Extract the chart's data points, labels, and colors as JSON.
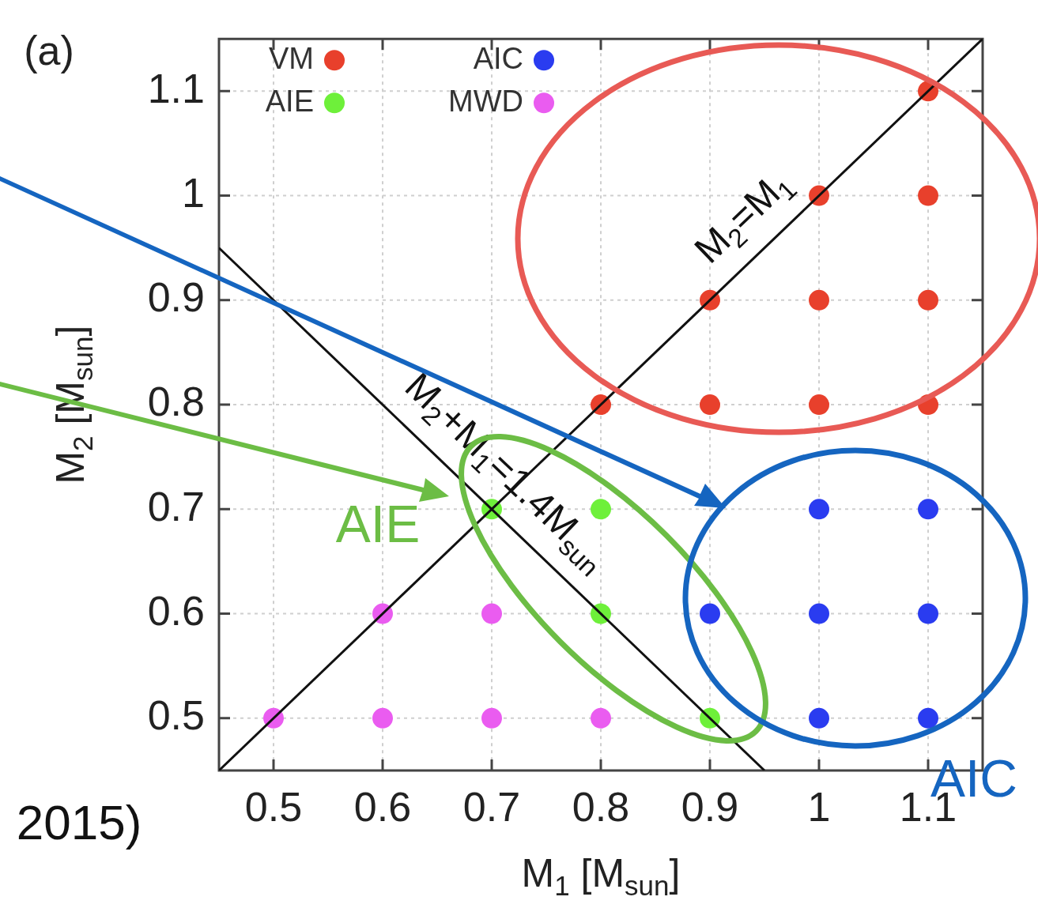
{
  "chart_data": {
    "type": "scatter",
    "xlabel": "M$_{1}$ [M$_{sun}$]",
    "ylabel": "M$_{2}$ [M$_{sun}$]",
    "xlim": [
      0.45,
      1.15
    ],
    "ylim": [
      0.45,
      1.15
    ],
    "xticks": [
      0.5,
      0.6,
      0.7,
      0.8,
      0.9,
      1,
      1.1
    ],
    "yticks": [
      0.5,
      0.6,
      0.7,
      0.8,
      0.9,
      1,
      1.1
    ],
    "grid": true,
    "legend": "top left",
    "marker": "circle",
    "series": [
      {
        "name": "VM",
        "color": "#e8402c",
        "x": [
          0.8,
          0.9,
          1.0,
          1.1,
          0.9,
          1.0,
          1.1,
          1.0,
          1.1,
          1.1
        ],
        "values": [
          0.8,
          0.8,
          0.8,
          0.8,
          0.9,
          0.9,
          0.9,
          1.0,
          1.0,
          1.1
        ]
      },
      {
        "name": "AIC",
        "color": "#2a3cf0",
        "x": [
          1.0,
          1.1,
          0.9,
          1.0,
          1.1,
          1.0,
          1.1
        ],
        "values": [
          0.7,
          0.7,
          0.6,
          0.6,
          0.6,
          0.5,
          0.5
        ]
      },
      {
        "name": "AIE",
        "color": "#6ef03a",
        "x": [
          0.7,
          0.8,
          0.8,
          0.9
        ],
        "values": [
          0.7,
          0.7,
          0.6,
          0.5
        ]
      },
      {
        "name": "MWD",
        "color": "#ea5cf0",
        "x": [
          0.5,
          0.6,
          0.7,
          0.8,
          0.6,
          0.7
        ],
        "values": [
          0.5,
          0.5,
          0.5,
          0.5,
          0.6,
          0.6
        ]
      },
      {
        "type": "line",
        "name": "M$_{2}$=M$_{1}$",
        "color": "#111111",
        "marker": "none",
        "x": [
          0.45,
          1.15
        ],
        "values": [
          0.45,
          1.15
        ]
      },
      {
        "type": "line",
        "name": "M$_{2}$+M$_{1}$=1.4M$_{sun}$",
        "color": "#111111",
        "marker": "none",
        "x": [
          0.45,
          0.95
        ],
        "values": [
          0.95,
          0.45
        ]
      }
    ],
    "annotations": [
      "(a)",
      "AIE",
      "AIC",
      "2015)"
    ]
  }
}
